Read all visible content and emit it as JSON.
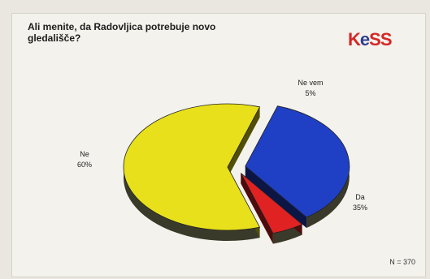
{
  "chart_data": {
    "type": "pie",
    "title": "Ali menite, da Radovljica potrebuje novo gledališče?",
    "slices": [
      {
        "label": "Da",
        "value": 35,
        "value_label": "35%",
        "color": "#1f3fc4"
      },
      {
        "label": "Ne vem",
        "value": 5,
        "value_label": "5%",
        "color": "#e02222"
      },
      {
        "label": "Ne",
        "value": 60,
        "value_label": "60%",
        "color": "#e8e01a"
      }
    ],
    "exploded": true,
    "three_d": true,
    "note": "N = 370"
  },
  "logo_text": "KeSS",
  "colors": {
    "shadow": "#3a3a2a",
    "background": "#f4f2ec"
  }
}
